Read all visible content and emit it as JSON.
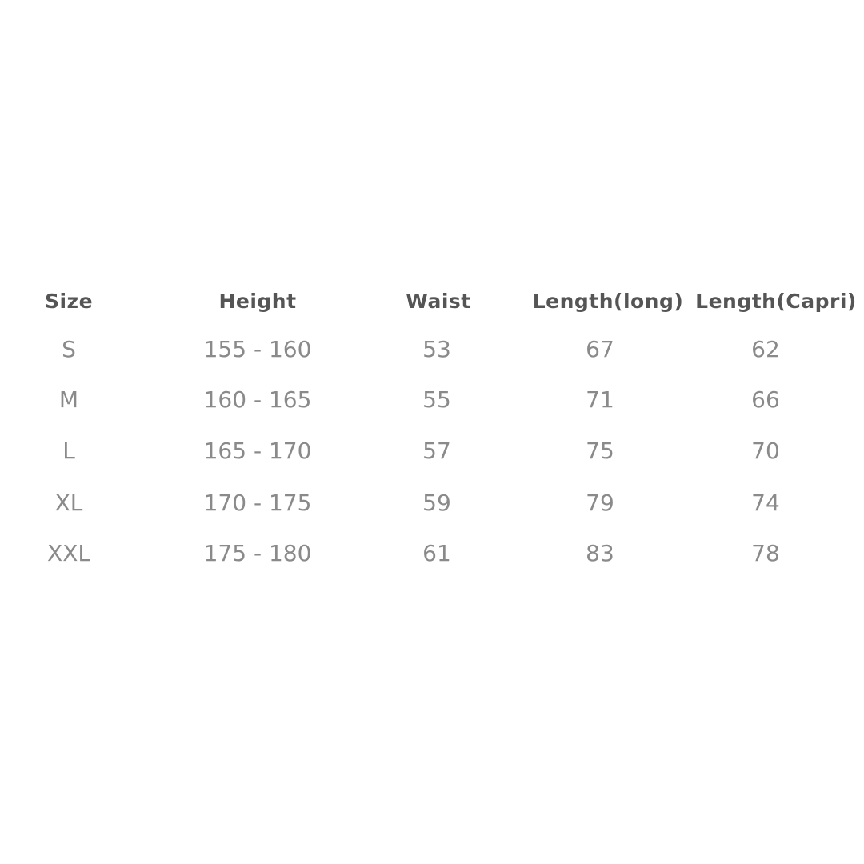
{
  "table": {
    "headers": [
      "Size",
      "Height",
      "Waist",
      "Length(long)",
      "Length(Capri)"
    ],
    "rows": [
      [
        "S",
        "155 - 160",
        "53",
        "67",
        "62"
      ],
      [
        "M",
        "160 - 165",
        "55",
        "71",
        "66"
      ],
      [
        "L",
        "165 - 170",
        "57",
        "75",
        "70"
      ],
      [
        "XL",
        "170 - 175",
        "59",
        "79",
        "74"
      ],
      [
        "XXL",
        "175 - 180",
        "61",
        "83",
        "78"
      ]
    ]
  }
}
